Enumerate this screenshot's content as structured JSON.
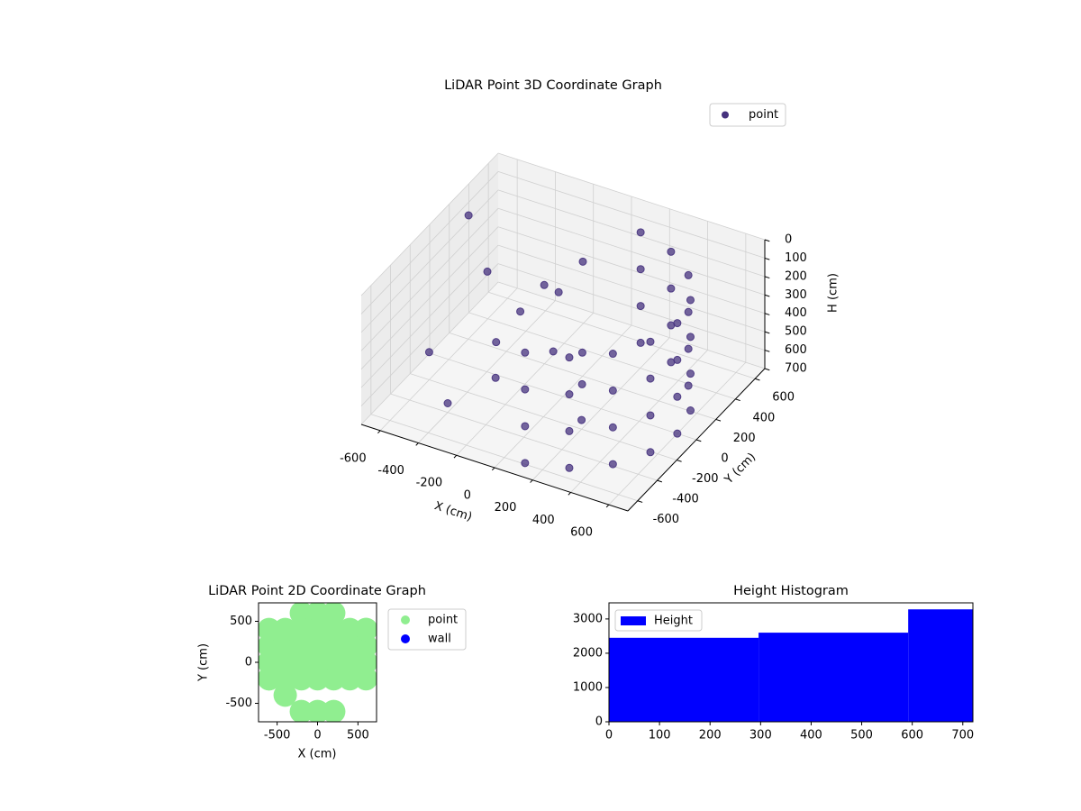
{
  "chart_data": [
    {
      "type": "scatter3d",
      "title": "LiDAR Point 3D Coordinate Graph",
      "xlabel": "X (cm)",
      "ylabel": "Y (cm)",
      "zlabel": "H (cm)",
      "xlim": [
        -700,
        700
      ],
      "ylim": [
        -700,
        700
      ],
      "zlim": [
        0,
        700
      ],
      "z_inverted": true,
      "xticks": [
        -600,
        -400,
        -200,
        0,
        200,
        400,
        600
      ],
      "yticks": [
        -600,
        -400,
        -200,
        0,
        200,
        400,
        600
      ],
      "zticks": [
        0,
        100,
        200,
        300,
        400,
        500,
        600,
        700
      ],
      "legend": "upper right",
      "grid": true,
      "series": [
        {
          "name": "point",
          "color": "#46327e",
          "x": [
            104,
            104,
            104,
            104,
            300,
            300,
            300,
            300,
            460,
            460,
            460,
            460,
            564,
            564,
            564,
            564,
            600,
            600,
            600,
            600,
            564,
            564,
            564,
            564,
            460,
            460,
            460,
            460,
            300,
            300,
            300,
            300,
            104,
            104,
            104,
            104,
            -150,
            -100,
            -300,
            -500,
            -650,
            -200,
            100,
            0,
            -400,
            -50,
            200,
            -250,
            -600,
            50
          ],
          "y": [
            -591,
            -591,
            -591,
            -591,
            -520,
            -520,
            -520,
            -520,
            -386,
            -386,
            -386,
            -386,
            -205,
            -205,
            -205,
            -205,
            0,
            0,
            0,
            0,
            205,
            205,
            205,
            205,
            386,
            386,
            386,
            386,
            520,
            520,
            520,
            520,
            591,
            591,
            591,
            591,
            100,
            150,
            -100,
            200,
            300,
            -300,
            0,
            -100,
            -400,
            300,
            -200,
            50,
            -200,
            100
          ],
          "z": [
            100,
            300,
            500,
            700,
            100,
            300,
            500,
            700,
            100,
            300,
            500,
            700,
            100,
            300,
            500,
            700,
            100,
            300,
            500,
            700,
            100,
            300,
            500,
            700,
            100,
            300,
            500,
            700,
            100,
            300,
            500,
            700,
            100,
            300,
            500,
            700,
            200,
            250,
            450,
            300,
            100,
            500,
            600,
            400,
            650,
            150,
            650,
            350,
            550,
            500
          ]
        }
      ]
    },
    {
      "type": "scatter",
      "title": "LiDAR Point 2D Coordinate Graph",
      "xlabel": "X (cm)",
      "ylabel": "Y (cm)",
      "xlim": [
        -730,
        730
      ],
      "ylim": [
        -725,
        725
      ],
      "xticks": [
        -500,
        0,
        500
      ],
      "yticks": [
        -500,
        0,
        500
      ],
      "legend": "outside right",
      "series": [
        {
          "name": "point",
          "color": "#90ee90",
          "x": [
            -200,
            0,
            200,
            -600,
            -400,
            -200,
            0,
            200,
            400,
            600,
            -600,
            -400,
            -200,
            0,
            200,
            400,
            600,
            -600,
            -400,
            -200,
            0,
            200,
            400,
            600,
            -600,
            -400,
            -200,
            0,
            200,
            400,
            600,
            -200,
            0,
            200,
            -600,
            600,
            -400
          ],
          "y": [
            600,
            600,
            600,
            200,
            200,
            200,
            200,
            200,
            200,
            200,
            0,
            0,
            0,
            0,
            0,
            0,
            0,
            -200,
            -200,
            -200,
            -200,
            -200,
            -200,
            -200,
            400,
            400,
            400,
            400,
            400,
            400,
            400,
            -600,
            -600,
            -600,
            -200,
            400,
            -400
          ]
        },
        {
          "name": "wall",
          "color": "#0000ff",
          "x": [],
          "y": []
        }
      ]
    },
    {
      "type": "histogram",
      "title": "Height Histogram",
      "bins": [
        0,
        296,
        592,
        720
      ],
      "values": [
        2450,
        2600,
        3280
      ],
      "color": "#0000ff",
      "series_name": "Height",
      "legend": "upper left",
      "xlim": [
        0,
        720
      ],
      "ylim": [
        0,
        3470
      ],
      "xticks": [
        0,
        100,
        200,
        300,
        400,
        500,
        600,
        700
      ],
      "yticks": [
        0,
        1000,
        2000,
        3000
      ]
    }
  ]
}
